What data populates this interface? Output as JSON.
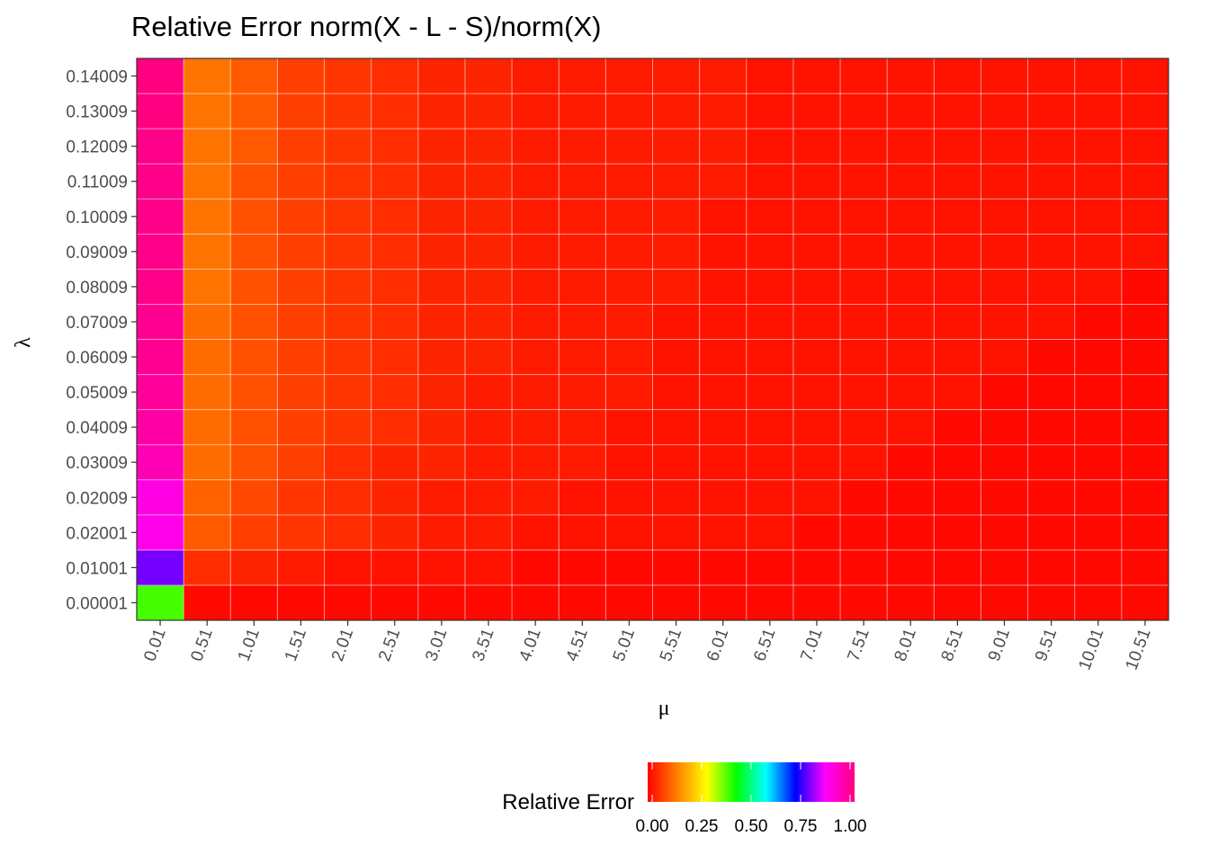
{
  "chart_data": {
    "type": "heatmap",
    "title": "Relative Error norm(X - L - S)/norm(X)",
    "xlabel": "μ",
    "ylabel": "λ",
    "x": [
      "0.01",
      "0.51",
      "1.01",
      "1.51",
      "2.01",
      "2.51",
      "3.01",
      "3.51",
      "4.01",
      "4.51",
      "5.01",
      "5.51",
      "6.01",
      "6.51",
      "7.01",
      "7.51",
      "8.01",
      "8.51",
      "9.01",
      "9.51",
      "10.01",
      "10.51"
    ],
    "y": [
      "0.00001",
      "0.01001",
      "0.02001",
      "0.02009",
      "0.03009",
      "0.04009",
      "0.05009",
      "0.06009",
      "0.07009",
      "0.08009",
      "0.09009",
      "0.10009",
      "0.11009",
      "0.12009",
      "0.13009",
      "0.14009"
    ],
    "z": [
      [
        0.39,
        0.01,
        0.01,
        0.01,
        0.01,
        0.01,
        0.01,
        0.01,
        0.01,
        0.01,
        0.01,
        0.01,
        0.01,
        0.01,
        0.01,
        0.01,
        0.01,
        0.01,
        0.01,
        0.01,
        0.01,
        0.01
      ],
      [
        0.78,
        0.05,
        0.04,
        0.03,
        0.02,
        0.02,
        0.02,
        0.02,
        0.01,
        0.01,
        0.01,
        0.01,
        0.01,
        0.01,
        0.01,
        0.01,
        0.01,
        0.01,
        0.01,
        0.01,
        0.01,
        0.01
      ],
      [
        0.88,
        0.1,
        0.07,
        0.06,
        0.05,
        0.04,
        0.03,
        0.03,
        0.02,
        0.02,
        0.02,
        0.02,
        0.02,
        0.02,
        0.01,
        0.01,
        0.01,
        0.01,
        0.01,
        0.01,
        0.01,
        0.01
      ],
      [
        0.89,
        0.11,
        0.08,
        0.06,
        0.05,
        0.04,
        0.03,
        0.03,
        0.03,
        0.02,
        0.02,
        0.02,
        0.02,
        0.02,
        0.02,
        0.01,
        0.01,
        0.01,
        0.01,
        0.01,
        0.01,
        0.01
      ],
      [
        0.94,
        0.12,
        0.09,
        0.07,
        0.05,
        0.04,
        0.04,
        0.03,
        0.03,
        0.03,
        0.02,
        0.02,
        0.02,
        0.02,
        0.02,
        0.02,
        0.01,
        0.01,
        0.01,
        0.01,
        0.01,
        0.01
      ],
      [
        0.96,
        0.12,
        0.09,
        0.07,
        0.06,
        0.05,
        0.04,
        0.03,
        0.03,
        0.03,
        0.02,
        0.02,
        0.02,
        0.02,
        0.02,
        0.02,
        0.02,
        0.01,
        0.01,
        0.01,
        0.01,
        0.01
      ],
      [
        0.97,
        0.12,
        0.09,
        0.07,
        0.06,
        0.05,
        0.04,
        0.03,
        0.03,
        0.03,
        0.03,
        0.02,
        0.02,
        0.02,
        0.02,
        0.02,
        0.02,
        0.02,
        0.01,
        0.01,
        0.01,
        0.01
      ],
      [
        0.98,
        0.12,
        0.09,
        0.07,
        0.06,
        0.05,
        0.04,
        0.04,
        0.03,
        0.03,
        0.03,
        0.02,
        0.02,
        0.02,
        0.02,
        0.02,
        0.02,
        0.02,
        0.02,
        0.01,
        0.01,
        0.01
      ],
      [
        0.98,
        0.12,
        0.09,
        0.07,
        0.06,
        0.05,
        0.04,
        0.04,
        0.03,
        0.03,
        0.03,
        0.02,
        0.02,
        0.02,
        0.02,
        0.02,
        0.02,
        0.02,
        0.02,
        0.02,
        0.01,
        0.01
      ],
      [
        0.99,
        0.13,
        0.09,
        0.07,
        0.06,
        0.05,
        0.04,
        0.04,
        0.03,
        0.03,
        0.03,
        0.03,
        0.02,
        0.02,
        0.02,
        0.02,
        0.02,
        0.02,
        0.02,
        0.02,
        0.02,
        0.01
      ],
      [
        0.99,
        0.13,
        0.09,
        0.07,
        0.06,
        0.05,
        0.04,
        0.04,
        0.03,
        0.03,
        0.03,
        0.03,
        0.02,
        0.02,
        0.02,
        0.02,
        0.02,
        0.02,
        0.02,
        0.02,
        0.02,
        0.02
      ],
      [
        0.99,
        0.13,
        0.09,
        0.07,
        0.06,
        0.05,
        0.04,
        0.04,
        0.03,
        0.03,
        0.03,
        0.03,
        0.02,
        0.02,
        0.02,
        0.02,
        0.02,
        0.02,
        0.02,
        0.02,
        0.02,
        0.02
      ],
      [
        0.99,
        0.13,
        0.09,
        0.07,
        0.06,
        0.05,
        0.04,
        0.04,
        0.03,
        0.03,
        0.03,
        0.03,
        0.03,
        0.02,
        0.02,
        0.02,
        0.02,
        0.02,
        0.02,
        0.02,
        0.02,
        0.02
      ],
      [
        0.99,
        0.13,
        0.1,
        0.07,
        0.06,
        0.05,
        0.04,
        0.04,
        0.03,
        0.03,
        0.03,
        0.03,
        0.03,
        0.02,
        0.02,
        0.02,
        0.02,
        0.02,
        0.02,
        0.02,
        0.02,
        0.02
      ],
      [
        1.0,
        0.13,
        0.1,
        0.07,
        0.06,
        0.05,
        0.04,
        0.04,
        0.03,
        0.03,
        0.03,
        0.03,
        0.03,
        0.02,
        0.02,
        0.02,
        0.02,
        0.02,
        0.02,
        0.02,
        0.02,
        0.02
      ],
      [
        1.0,
        0.13,
        0.1,
        0.07,
        0.06,
        0.05,
        0.04,
        0.04,
        0.03,
        0.03,
        0.03,
        0.03,
        0.03,
        0.02,
        0.02,
        0.02,
        0.02,
        0.02,
        0.02,
        0.02,
        0.02,
        0.02
      ]
    ],
    "zlim": [
      0,
      1
    ],
    "colorscale": [
      "#ff0000",
      "#ff8000",
      "#ffff00",
      "#00ff00",
      "#00ffff",
      "#0000ff",
      "#ff00ff",
      "#ff0080"
    ],
    "grid": true,
    "legend": {
      "title": "Relative Error",
      "placement": "bottom",
      "ticks": [
        "0.00",
        "0.25",
        "0.50",
        "0.75",
        "1.00"
      ]
    }
  }
}
